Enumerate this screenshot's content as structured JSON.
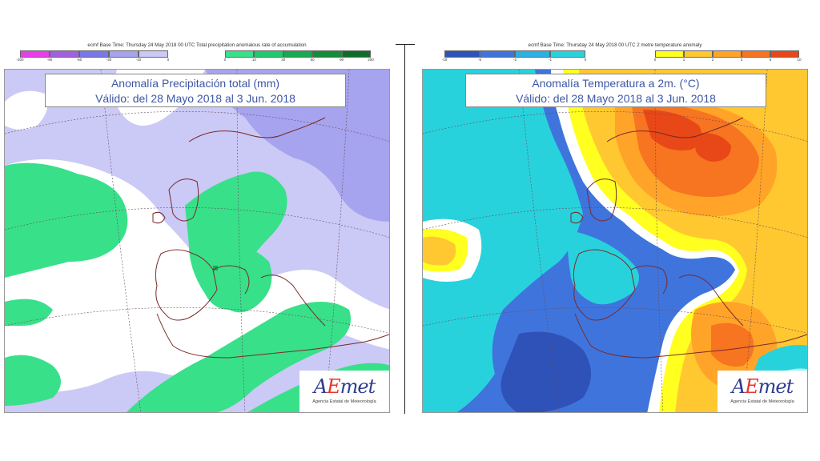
{
  "left_panel": {
    "header": "ecmf  Base Time: Thursday 24 May 2018 00 UTC Total precipitation anomalous rate of accumulation",
    "legend_negative": {
      "colors": [
        "#e83ee8",
        "#a060e0",
        "#7a78e6",
        "#a6a4ee",
        "#cbc9f6"
      ],
      "ticks": [
        "-200",
        "-90",
        "-60",
        "-30",
        "-10",
        "0"
      ]
    },
    "legend_positive": {
      "colors": [
        "#38e08a",
        "#20c870",
        "#18aa50",
        "#148c38",
        "#0e6e28"
      ],
      "ticks": [
        "0",
        "10",
        "30",
        "60",
        "90",
        "200"
      ]
    },
    "title_line1": "Anomalía Precipitación total (mm)",
    "title_line2": "Válido: del 28 Mayo 2018 al 3 Jun. 2018",
    "logo_text": "AEmet",
    "logo_subtitle": "Agencia Estatal de Meteorología"
  },
  "right_panel": {
    "header": "ecmf  Base Time: Thursday 24 May 2018 00 UTC 2 metre temperature anomaly",
    "legend_negative": {
      "colors": [
        "#2f52b8",
        "#3f74dc",
        "#2ab0e2",
        "#28d2dc"
      ],
      "ticks": [
        "-10",
        "-5",
        "-2",
        "-1",
        "0"
      ]
    },
    "legend_positive": {
      "colors": [
        "#ffff20",
        "#ffc830",
        "#ffa428",
        "#f77420",
        "#e84818"
      ],
      "ticks": [
        "0",
        "1",
        "2",
        "3",
        "6",
        "10"
      ]
    },
    "title_line1": "Anomalía Temperatura a 2m. (°C)",
    "title_line2": "Válido: del 28 Mayo 2018 al 3 Jun. 2018",
    "logo_text": "AEmet",
    "logo_subtitle": "Agencia Estatal de Meteorología"
  },
  "colors": {
    "precip_background": "#cbc9f6",
    "precip_dry": "#a6a4ee",
    "precip_white": "#ffffff",
    "precip_wet": "#38e08a",
    "precip_wetter": "#20c870",
    "temp_background": "#3f74dc",
    "temp_cool": "#28d2dc",
    "temp_cold": "#2f52b8",
    "temp_near_zero": "#ffffff",
    "temp_warm": "#ffc830",
    "temp_hot": "#ffa428",
    "temp_hotter": "#f77420",
    "temp_hottest": "#e84818",
    "coast": "#7a2a2a",
    "grid": "#6a4a5a",
    "title_text": "#3c56a7"
  }
}
